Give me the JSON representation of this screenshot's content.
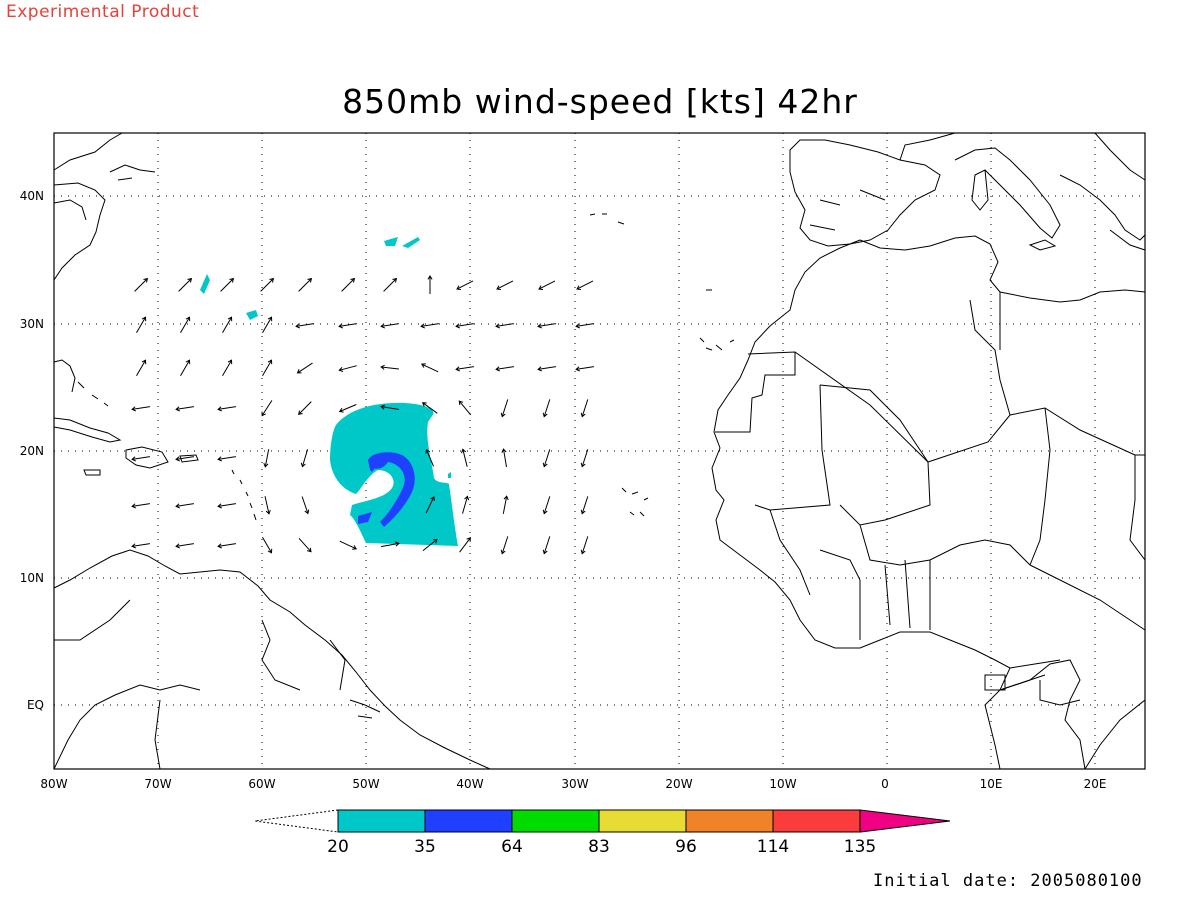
{
  "header": {
    "experimental_label": "Experimental Product"
  },
  "map": {
    "title": "850mb wind-speed [kts] 42hr",
    "lon_range": [
      -80,
      25
    ],
    "lat_range": [
      -6,
      44
    ],
    "x_tick_labels": [
      "80W",
      "70W",
      "60W",
      "50W",
      "40W",
      "30W",
      "20W",
      "10W",
      "0",
      "10E",
      "20E"
    ],
    "y_tick_labels": [
      "40N",
      "30N",
      "20N",
      "10N",
      "EQ"
    ],
    "grid": "dotted",
    "vector_field": "wind arrows"
  },
  "colorbar": {
    "thresholds": [
      "20",
      "35",
      "64",
      "83",
      "96",
      "114",
      "135"
    ],
    "colors": [
      "#00c8c8",
      "#2040ff",
      "#00dc00",
      "#e6dc32",
      "#f08228",
      "#fa3c3c",
      "#f00082"
    ],
    "below_min": "white (open triangle)",
    "above_max": "#f00082"
  },
  "footer": {
    "initial_date": "Initial date: 2005080100"
  }
}
